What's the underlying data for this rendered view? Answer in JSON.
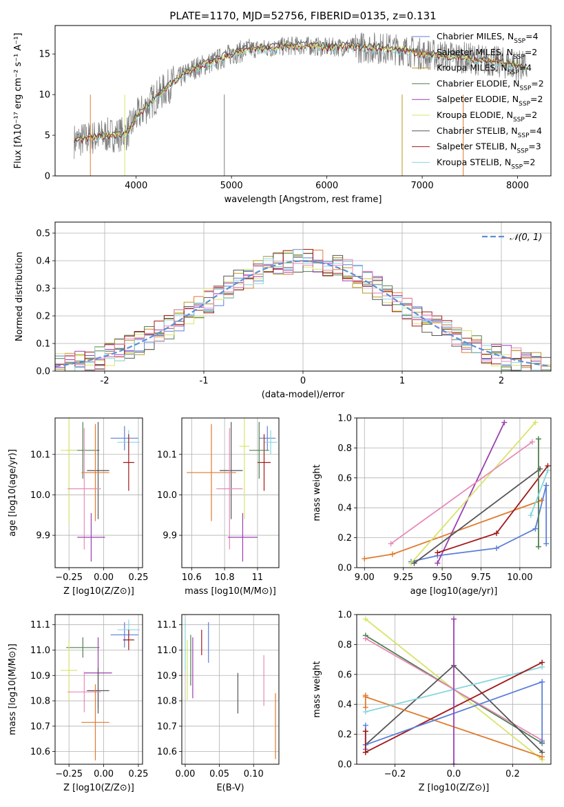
{
  "title": "PLATE=1170, MJD=52756, FIBERID=0135, z=0.131",
  "colors": [
    "#5b7fd8",
    "#e07a2e",
    "#b8961e",
    "#4f7f4f",
    "#9a3fb0",
    "#d8e46a",
    "#555555",
    "#a01818",
    "#86d6de",
    "#e889b8"
  ],
  "chart_data": [
    {
      "type": "line",
      "name": "spectrum",
      "xlabel": "wavelength [Angstrom, rest frame]",
      "ylabel": "Flux [fλ10⁻¹⁷ erg cm⁻² s⁻¹ A⁻¹]",
      "xlim": [
        3150,
        8350
      ],
      "ylim": [
        0,
        18.5
      ],
      "xticks": [
        4000,
        5000,
        6000,
        7000,
        8000
      ],
      "yticks": [
        0,
        5,
        10,
        15
      ],
      "legend": [
        {
          "label": "Chabrier MILES, N_SSP=4",
          "color": "#5b7fd8"
        },
        {
          "label": "Salpeter MILES, N_SSP=2",
          "color": "#e07a2e"
        },
        {
          "label": "Kroupa MILES, N_SSP=4",
          "color": "#b8961e"
        },
        {
          "label": "Chabrier ELODIE, N_SSP=2",
          "color": "#4f7f4f"
        },
        {
          "label": "Salpeter ELODIE, N_SSP=2",
          "color": "#9a3fb0"
        },
        {
          "label": "Kroupa ELODIE, N_SSP=2",
          "color": "#d8e46a"
        },
        {
          "label": "Chabrier STELIB, N_SSP=4",
          "color": "#555555"
        },
        {
          "label": "Salpeter STELIB, N_SSP=3",
          "color": "#a01818"
        },
        {
          "label": "Kroupa STELIB, N_SSP=2",
          "color": "#86d6de"
        }
      ],
      "continuum": {
        "x": [
          3350,
          3500,
          3700,
          3900,
          4000,
          4200,
          4400,
          4600,
          4800,
          5000,
          5200,
          5400,
          5600,
          5800,
          6000,
          6200,
          6400,
          6600,
          6800,
          7000,
          7200,
          7400,
          7600,
          7800,
          8000,
          8100
        ],
        "y": [
          4.3,
          4.6,
          5.0,
          5.2,
          7.2,
          9.6,
          11.6,
          13.2,
          14.0,
          15.0,
          15.6,
          15.7,
          16.0,
          16.0,
          15.8,
          15.9,
          15.8,
          15.7,
          15.5,
          15.0,
          14.8,
          14.6,
          14.3,
          14.0,
          13.6,
          13.3
        ]
      }
    },
    {
      "type": "step",
      "name": "residuals",
      "xlabel": "(data-model)/error",
      "ylabel": "Normed distribution",
      "xlim": [
        -2.5,
        2.5
      ],
      "ylim": [
        0,
        0.54
      ],
      "xticks": [
        -2,
        -1,
        0,
        1,
        2
      ],
      "yticks": [
        0.0,
        0.1,
        0.2,
        0.3,
        0.4,
        0.5
      ],
      "legend": [
        {
          "label": "𝒩(0, 1)",
          "color": "#5b8fd8"
        }
      ]
    },
    {
      "type": "scatter",
      "name": "age-vs-Z",
      "xlabel": "Z [log10(Z/Z⊙)]",
      "ylabel": "age  [log10(age/yr)]",
      "xlim": [
        -0.35,
        0.28
      ],
      "ylim": [
        9.82,
        10.19
      ],
      "xticks": [
        -0.25,
        0.0,
        0.25
      ],
      "xticklabels": [
        "−0.25",
        "0.00",
        "0.25"
      ],
      "yticks": [
        9.9,
        10.0,
        10.1
      ],
      "points": [
        {
          "c": "#5b7fd8",
          "x": 0.15,
          "xe": 0.1,
          "y": 10.14,
          "ye": 0.03
        },
        {
          "c": "#86d6de",
          "x": 0.18,
          "xe": 0.08,
          "y": 10.13,
          "ye": 0.03
        },
        {
          "c": "#a01818",
          "x": 0.18,
          "xe": 0.04,
          "y": 10.08,
          "ye": 0.07
        },
        {
          "c": "#4f7f4f",
          "x": -0.15,
          "xe": 0.12,
          "y": 10.11,
          "ye": 0.07
        },
        {
          "c": "#d8e46a",
          "x": -0.25,
          "xe": 0.06,
          "y": 10.11,
          "ye": 0.18
        },
        {
          "c": "#555555",
          "x": -0.04,
          "xe": 0.08,
          "y": 10.06,
          "ye": 0.12
        },
        {
          "c": "#e07a2e",
          "x": -0.06,
          "xe": 0.1,
          "y": 10.055,
          "ye": 0.12
        },
        {
          "c": "#e889b8",
          "x": -0.14,
          "xe": 0.12,
          "y": 10.015,
          "ye": 0.15
        },
        {
          "c": "#9a3fb0",
          "x": -0.09,
          "xe": 0.1,
          "y": 9.895,
          "ye": 0.06
        }
      ]
    },
    {
      "type": "scatter",
      "name": "age-vs-mass",
      "xlabel": "mass [log10(M/M⊙)]",
      "ylabel": "",
      "xlim": [
        10.54,
        11.13
      ],
      "ylim": [
        9.82,
        10.19
      ],
      "xticks": [
        10.6,
        10.8,
        11.0
      ],
      "yticks": [
        9.9,
        10.0,
        10.1
      ],
      "points": [
        {
          "c": "#5b7fd8",
          "x": 11.06,
          "xe": 0.05,
          "y": 10.14,
          "ye": 0.03
        },
        {
          "c": "#86d6de",
          "x": 11.08,
          "xe": 0.04,
          "y": 10.13,
          "ye": 0.03
        },
        {
          "c": "#a01818",
          "x": 11.04,
          "xe": 0.04,
          "y": 10.08,
          "ye": 0.07
        },
        {
          "c": "#4f7f4f",
          "x": 11.01,
          "xe": 0.06,
          "y": 10.11,
          "ye": 0.07
        },
        {
          "c": "#d8e46a",
          "x": 10.92,
          "xe": 0.03,
          "y": 10.12,
          "ye": 0.18
        },
        {
          "c": "#555555",
          "x": 10.84,
          "xe": 0.07,
          "y": 10.06,
          "ye": 0.12
        },
        {
          "c": "#e07a2e",
          "x": 10.72,
          "xe": 0.15,
          "y": 10.055,
          "ye": 0.12
        },
        {
          "c": "#e889b8",
          "x": 10.83,
          "xe": 0.08,
          "y": 10.015,
          "ye": 0.15
        },
        {
          "c": "#9a3fb0",
          "x": 10.91,
          "xe": 0.09,
          "y": 9.895,
          "ye": 0.06
        }
      ]
    },
    {
      "type": "line",
      "name": "weight-vs-age",
      "xlabel": "age  [log10(age/yr)]",
      "ylabel": "mass weight",
      "xlim": [
        8.95,
        10.2
      ],
      "ylim": [
        0,
        1
      ],
      "xticks": [
        9.0,
        9.25,
        9.5,
        9.75,
        10.0
      ],
      "xticklabels": [
        "9.00",
        "9.25",
        "9.50",
        "9.75",
        "10.00"
      ],
      "yticks": [
        0,
        0.2,
        0.4,
        0.6,
        0.8,
        1.0
      ],
      "series": [
        {
          "c": "#5b7fd8",
          "x": [
            9.3,
            9.47,
            9.85,
            10.1,
            10.17
          ],
          "y": [
            0.04,
            0.08,
            0.13,
            0.26,
            0.55
          ]
        },
        {
          "c": "#e07a2e",
          "x": [
            9.0,
            9.18,
            10.14
          ],
          "y": [
            0.06,
            0.09,
            0.45
          ]
        },
        {
          "c": "#9a3fb0",
          "x": [
            9.47,
            9.9
          ],
          "y": [
            0.03,
            0.97
          ]
        },
        {
          "c": "#d8e46a",
          "x": [
            9.3,
            10.1
          ],
          "y": [
            0.03,
            0.97
          ]
        },
        {
          "c": "#e889b8",
          "x": [
            9.17,
            10.08
          ],
          "y": [
            0.16,
            0.84
          ]
        },
        {
          "c": "#555555",
          "x": [
            9.32,
            10.13
          ],
          "y": [
            0.03,
            0.66
          ]
        },
        {
          "c": "#a01818",
          "x": [
            9.47,
            9.85,
            10.18
          ],
          "y": [
            0.1,
            0.23,
            0.68
          ]
        },
        {
          "c": "#4f7f4f",
          "x": [
            10.12,
            10.12
          ],
          "y": [
            0.14,
            0.86
          ]
        },
        {
          "c": "#86d6de",
          "x": [
            10.07,
            10.18
          ],
          "y": [
            0.35,
            0.65
          ]
        },
        {
          "c": "#5b7fd8",
          "x": [
            10.17,
            10.17
          ],
          "y": [
            0.16,
            0.55
          ]
        }
      ]
    },
    {
      "type": "scatter",
      "name": "mass-vs-Z",
      "xlabel": "Z [log10(Z/Z⊙)]",
      "ylabel": "mass [log10(M/M⊙)]",
      "xlim": [
        -0.35,
        0.28
      ],
      "ylim": [
        10.55,
        11.14
      ],
      "xticks": [
        -0.25,
        0.0,
        0.25
      ],
      "xticklabels": [
        "−0.25",
        "0.00",
        "0.25"
      ],
      "yticks": [
        10.6,
        10.7,
        10.8,
        10.9,
        11.0,
        11.1
      ],
      "points": [
        {
          "c": "#5b7fd8",
          "x": 0.15,
          "xe": 0.1,
          "y": 11.06,
          "ye": 0.05
        },
        {
          "c": "#86d6de",
          "x": 0.18,
          "xe": 0.08,
          "y": 11.08,
          "ye": 0.04
        },
        {
          "c": "#a01818",
          "x": 0.18,
          "xe": 0.04,
          "y": 11.04,
          "ye": 0.04
        },
        {
          "c": "#4f7f4f",
          "x": -0.15,
          "xe": 0.12,
          "y": 11.01,
          "ye": 0.04
        },
        {
          "c": "#d8e46a",
          "x": -0.25,
          "xe": 0.06,
          "y": 10.92,
          "ye": 0.12
        },
        {
          "c": "#9a3fb0",
          "x": -0.04,
          "xe": 0.1,
          "y": 10.91,
          "ye": 0.14
        },
        {
          "c": "#555555",
          "x": -0.04,
          "xe": 0.08,
          "y": 10.84,
          "ye": 0.09
        },
        {
          "c": "#e889b8",
          "x": -0.14,
          "xe": 0.12,
          "y": 10.835,
          "ye": 0.08
        },
        {
          "c": "#e07a2e",
          "x": -0.06,
          "xe": 0.1,
          "y": 10.715,
          "ye": 0.15
        }
      ]
    },
    {
      "type": "errorbar",
      "name": "mass-vs-ebv",
      "xlabel": "E(B-V)",
      "ylabel": "",
      "xlim": [
        -0.005,
        0.137
      ],
      "ylim": [
        10.55,
        11.14
      ],
      "xticks": [
        0.0,
        0.05,
        0.1
      ],
      "xticklabels": [
        "0.00",
        "0.05",
        "0.10"
      ],
      "yticks": [
        10.6,
        10.7,
        10.8,
        10.9,
        11.0,
        11.1
      ],
      "points": [
        {
          "c": "#86d6de",
          "x": 0.0,
          "y": 11.02,
          "ye": 0.1
        },
        {
          "c": "#d8e46a",
          "x": 0.003,
          "y": 10.92,
          "ye": 0.12
        },
        {
          "c": "#4f7f4f",
          "x": 0.008,
          "y": 10.96,
          "ye": 0.1
        },
        {
          "c": "#9a3fb0",
          "x": 0.011,
          "y": 10.93,
          "ye": 0.12
        },
        {
          "c": "#a01818",
          "x": 0.024,
          "y": 11.03,
          "ye": 0.05
        },
        {
          "c": "#5b7fd8",
          "x": 0.034,
          "y": 11.03,
          "ye": 0.08
        },
        {
          "c": "#555555",
          "x": 0.077,
          "y": 10.83,
          "ye": 0.08
        },
        {
          "c": "#e889b8",
          "x": 0.115,
          "y": 10.88,
          "ye": 0.1
        },
        {
          "c": "#e07a2e",
          "x": 0.132,
          "y": 10.7,
          "ye": 0.13
        }
      ]
    },
    {
      "type": "line",
      "name": "weight-vs-Z",
      "xlabel": "Z [log10(Z/Z⊙)]",
      "ylabel": "mass weight",
      "xlim": [
        -0.33,
        0.33
      ],
      "ylim": [
        0,
        1
      ],
      "xticks": [
        -0.2,
        0.0,
        0.2
      ],
      "xticklabels": [
        "−0.2",
        "0.0",
        "0.2"
      ],
      "yticks": [
        0,
        0.2,
        0.4,
        0.6,
        0.8,
        1.0
      ],
      "series": [
        {
          "c": "#d8e46a",
          "x": [
            -0.3,
            0.3
          ],
          "y": [
            0.97,
            0.03
          ]
        },
        {
          "c": "#4f7f4f",
          "x": [
            -0.3,
            0.3
          ],
          "y": [
            0.86,
            0.14
          ]
        },
        {
          "c": "#e889b8",
          "x": [
            -0.3,
            0.3
          ],
          "y": [
            0.84,
            0.16
          ]
        },
        {
          "c": "#555555",
          "x": [
            -0.3,
            0.0,
            0.3
          ],
          "y": [
            0.13,
            0.66,
            0.08
          ]
        },
        {
          "c": "#e07a2e",
          "x": [
            -0.3,
            0.3
          ],
          "y": [
            0.45,
            0.05
          ]
        },
        {
          "c": "#86d6de",
          "x": [
            -0.3,
            0.3
          ],
          "y": [
            0.35,
            0.65
          ]
        },
        {
          "c": "#a01818",
          "x": [
            -0.3,
            0.3
          ],
          "y": [
            0.08,
            0.68
          ]
        },
        {
          "c": "#5b7fd8",
          "x": [
            -0.3,
            0.3
          ],
          "y": [
            0.13,
            0.55
          ]
        },
        {
          "c": "#9a3fb0",
          "x": [
            0.0,
            0.0
          ],
          "y": [
            0.0,
            0.97
          ]
        },
        {
          "c": "#5b7fd8",
          "x": [
            -0.3,
            -0.3
          ],
          "y": [
            0.1,
            0.26
          ]
        },
        {
          "c": "#a01818",
          "x": [
            -0.3,
            -0.3
          ],
          "y": [
            0.08,
            0.22
          ]
        },
        {
          "c": "#5b7fd8",
          "x": [
            0.3,
            0.3
          ],
          "y": [
            0.15,
            0.55
          ]
        },
        {
          "c": "#e07a2e",
          "x": [
            -0.3,
            -0.3
          ],
          "y": [
            0.38,
            0.46
          ]
        }
      ]
    }
  ]
}
